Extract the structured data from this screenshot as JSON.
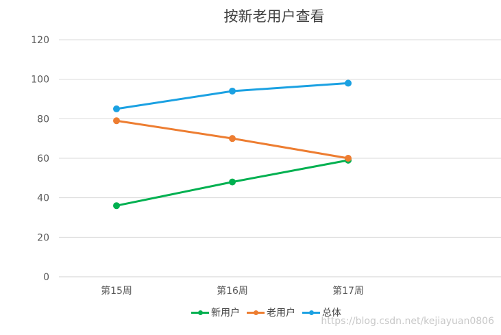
{
  "chart_data": {
    "type": "line",
    "title": "按新老用户查看",
    "categories": [
      "第15周",
      "第16周",
      "第17周"
    ],
    "ylim": [
      0,
      120
    ],
    "yticks": [
      0,
      20,
      40,
      60,
      80,
      100,
      120
    ],
    "grid": true,
    "legend_position": "bottom",
    "series": [
      {
        "name": "新用户",
        "values": [
          36,
          48,
          59
        ],
        "color": "#00b050"
      },
      {
        "name": "老用户",
        "values": [
          79,
          70,
          60
        ],
        "color": "#ed7d31"
      },
      {
        "name": "总体",
        "values": [
          85,
          94,
          98
        ],
        "color": "#1ba1e2"
      }
    ]
  },
  "watermark": "https://blog.csdn.net/kejiayuan0806"
}
